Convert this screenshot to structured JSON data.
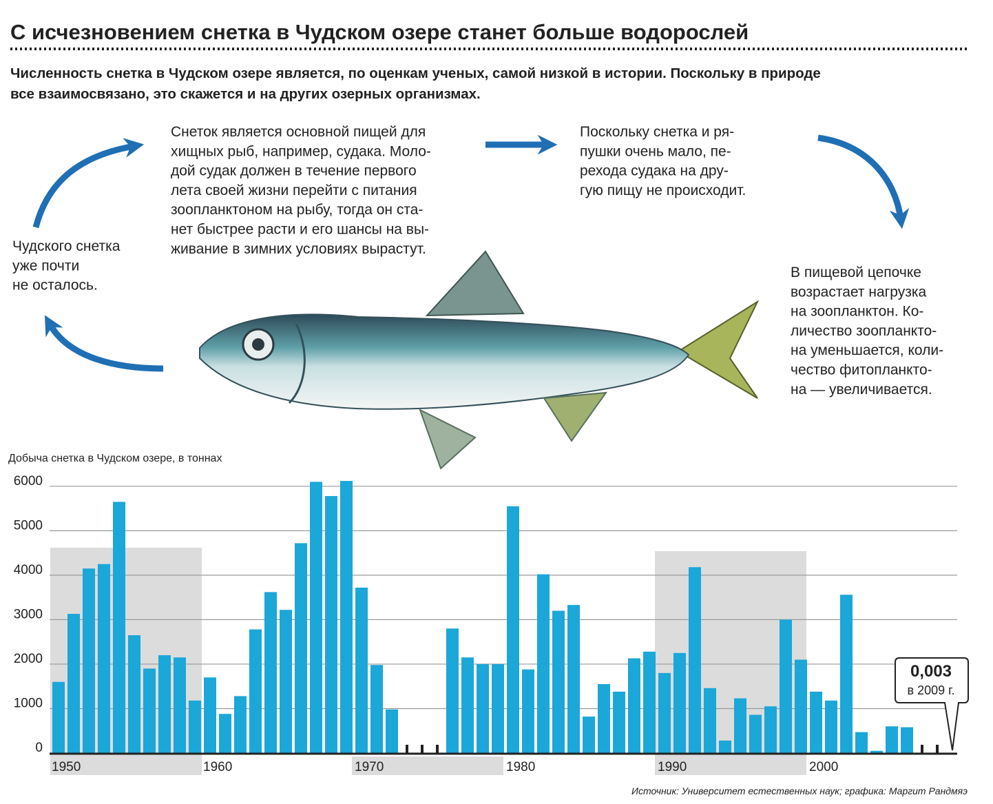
{
  "title": "С исчезновением снетка в Чудском озере станет больше водорослей",
  "subtitle_lines": [
    "Численность снетка в Чудском озере является, по оценкам ученых, самой низкой в истории. Поскольку в природе",
    "все взаимосвязано, это скажется и на других озерных организмах."
  ],
  "blocks": {
    "top": [
      "Снеток является основной пищей для",
      "хищных рыб, например, судака. Моло-",
      "дой судак должен в течение первого",
      "лета своей жизни перейти с питания",
      "зоопланктоном на рыбу, тогда он ста-",
      "нет быстрее расти и его шансы на вы-",
      "живание в зимних условиях вырастут."
    ],
    "middle": [
      "Поскольку снетка и ря-",
      "пушки очень мало, пе-",
      "рехода судака на дру-",
      "гую пищу не происходит."
    ],
    "left": [
      "Чудского снетка",
      "уже почти",
      "не осталось."
    ],
    "right": [
      "В пищевой цепочке",
      "возрастает нагрузка",
      "на зоопланктон. Ко-",
      "личество зоопланкто-",
      "на уменьшается, коли-",
      "чество фитопланкто-",
      "на — увеличивается."
    ]
  },
  "chart_data": {
    "type": "bar",
    "title": "Добыча снетка в Чудском озере, в тоннах",
    "categories": [
      "1950",
      null,
      null,
      null,
      null,
      null,
      null,
      null,
      null,
      null,
      "1960",
      null,
      null,
      null,
      null,
      null,
      null,
      null,
      null,
      null,
      "1970",
      null,
      null,
      null,
      null,
      null,
      null,
      null,
      null,
      null,
      "1980",
      null,
      null,
      null,
      null,
      null,
      null,
      null,
      null,
      null,
      "1990",
      null,
      null,
      null,
      null,
      null,
      null,
      null,
      null,
      null,
      "2000",
      null,
      null,
      null,
      null,
      null,
      null,
      null,
      null,
      null
    ],
    "values": [
      1600,
      3130,
      4150,
      4250,
      5650,
      2650,
      1900,
      2200,
      2150,
      1180,
      1700,
      880,
      1280,
      2780,
      3620,
      3220,
      4720,
      6100,
      5780,
      6120,
      3720,
      1980,
      980,
      null,
      null,
      null,
      2800,
      2150,
      2000,
      2000,
      5550,
      1880,
      4020,
      3200,
      3330,
      820,
      1550,
      1380,
      2130,
      2280,
      1800,
      2250,
      4180,
      1460,
      280,
      1230,
      860,
      1050,
      3000,
      2100,
      1380,
      1180,
      3560,
      470,
      50,
      600,
      580,
      null,
      null,
      0.003
    ],
    "color": "#1ba7d8",
    "ylim": [
      0,
      6400
    ],
    "yticks": [
      0,
      1000,
      2000,
      3000,
      4000,
      5000,
      6000
    ],
    "grid": true,
    "annotation": {
      "label": "0,003",
      "text": "в 2009 г."
    }
  },
  "source": "Источник: Университет естественных наук; графика: Маргит Рандмяэ"
}
